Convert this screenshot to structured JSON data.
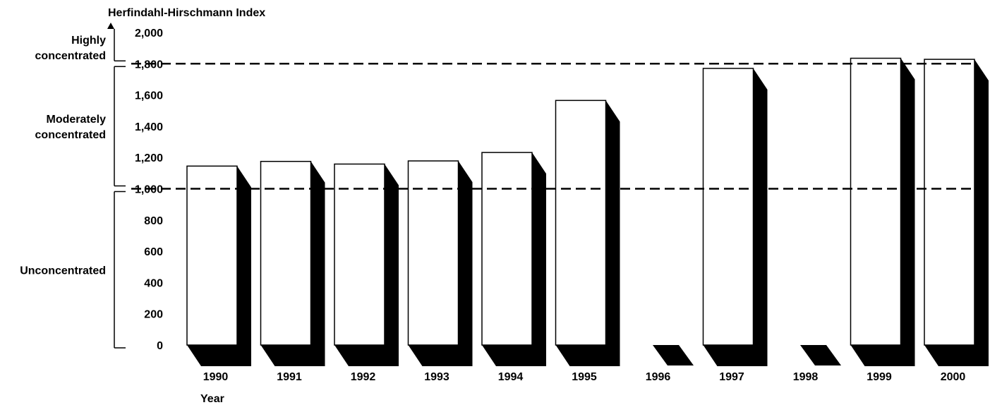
{
  "chart_data": {
    "type": "bar",
    "title": "Herfindahl-Hirschmann Index",
    "xlabel": "Year",
    "ylabel": "",
    "ylim": [
      0,
      2000
    ],
    "yticks": [
      "0",
      "200",
      "400",
      "600",
      "800",
      "1,000",
      "1,200",
      "1,400",
      "1,600",
      "1,800",
      "2,000"
    ],
    "categories": [
      "1990",
      "1991",
      "1992",
      "1993",
      "1994",
      "1995",
      "1996",
      "1997",
      "1998",
      "1999",
      "2000"
    ],
    "values": [
      1145,
      1175,
      1158,
      1178,
      1232,
      1565,
      null,
      1770,
      null,
      1835,
      1828
    ],
    "reference_lines": [
      1000,
      1800
    ],
    "zones": [
      {
        "label_lines": [
          "Highly",
          "concentrated"
        ],
        "from": 1800,
        "to": 2000
      },
      {
        "label_lines": [
          "Moderately",
          "concentrated"
        ],
        "from": 1000,
        "to": 1800
      },
      {
        "label_lines": [
          "Unconcentrated"
        ],
        "from": 0,
        "to": 1000
      }
    ],
    "legend": "none",
    "grid": false,
    "colors": {
      "bar_face": "#ffffff",
      "bar_shadow": "#000000",
      "outline": "#000000"
    }
  }
}
